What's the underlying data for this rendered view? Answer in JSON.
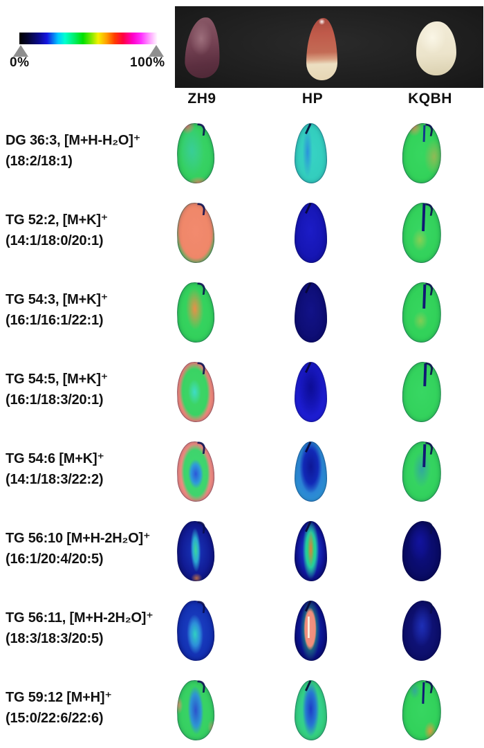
{
  "figure": {
    "colorbar": {
      "min_label": "0%",
      "max_label": "100%",
      "marker_color": "#8f8f8f",
      "gradient_css": "linear-gradient(to right, #000000 0%, #050530 6%, #0a0a8c 14%, #1515e0 20%, #00c8ff 28%, #00ffd0 33%, #00ee66 40%, #00e000 46%, #7fe800 52%, #f5f000 57%, #ffa000 63%, #ff3c00 69%, #ff0040 75%, #ff00c8 82%, #ff30ff 88%, #ff9cff 94%, #ffffff 100%)"
    },
    "photo_panel": {
      "background_css": "radial-gradient(ellipse at 50% 45%, #2a2a2a 0%, #1d1d1d 70%, #161616 100%)",
      "seeds": [
        {
          "variety": "ZH9",
          "appearance_css": "radial-gradient(ellipse 40% 35% at 45% 35%, #9d6f7c 0%, rgba(157,111,124,0) 80%), linear-gradient(170deg, #8a5a68 0%, #744253 45%, #5c2f40 75%, #4e2836 100%)"
        },
        {
          "variety": "HP",
          "appearance_css": "radial-gradient(ellipse 14% 7% at 50% 6%, rgba(255,255,255,0.95), rgba(255,255,255,0) 75%), linear-gradient(178deg, #a84a40 0%, #c05a4a 25%, #c36b55 55%, #d9a183 66%, #ecdfc2 74%, #e6d6b4 100%)"
        },
        {
          "variety": "KQBH",
          "appearance_css": "radial-gradient(ellipse 45% 40% at 40% 30%, #faf6e6 0%, rgba(250,246,230,0) 75%), linear-gradient(175deg, #f2ecd8 0%, #ece4cb 60%, #d9cfae 100%)"
        }
      ]
    },
    "columns": [
      "ZH9",
      "HP",
      "KQBH"
    ],
    "rows": [
      {
        "lipid": "DG 36:3, [M+H-H₂O]⁺",
        "chains": "(18:2/18:1)",
        "cells": [
          {
            "variety": "ZH9",
            "appearance_css": "radial-gradient(ellipse 30% 20% at 30% 4%, rgba(238,120,110,0.9), rgba(238,120,110,0) 70%), radial-gradient(ellipse 40% 14% at 55% 99%, rgba(242,140,95,0.85), rgba(242,140,95,0) 75%), radial-gradient(ellipse 35% 45% at 40% 45%, rgba(56,200,190,0.55), rgba(56,200,190,0) 95%), radial-gradient(ellipse at 50% 50%, #3bd46a 0%, #33cf5e 70%, #31c95b 100%)"
          },
          {
            "variety": "HP",
            "appearance_css": "linear-gradient(115deg, rgba(10,12,80,0.9) 0%, rgba(10,12,80,0) 13%), radial-gradient(ellipse 16% 45% at 40% 48%, rgba(35,105,235,0.6), rgba(35,105,235,0) 95%), radial-gradient(ellipse at 50% 50%, #37d3c4 0%, #33cdbd 65%, #2fc5b5 100%)"
          },
          {
            "variety": "KQBH",
            "appearance_css": "linear-gradient(#123a8c, #123a8c) 56% 4% / 6% 28% no-repeat, radial-gradient(ellipse 28% 22% at 28% 6%, rgba(236,150,92,0.85), rgba(236,150,92,0) 75%), radial-gradient(ellipse 30% 35% at 82% 55%, rgba(236,160,80,0.5), rgba(236,160,80,0) 85%), radial-gradient(ellipse at 50% 50%, #37d760 0%, #32d159 70%, #3dcf6d 100%)"
          }
        ]
      },
      {
        "lipid": "TG 52:2, [M+K]⁺",
        "chains": "(14:1/18:0/20:1)",
        "cells": [
          {
            "variety": "ZH9",
            "appearance_css": "radial-gradient(ellipse 62% 64% at 50% 47%, #f28a6e 0%, #ef8769 70%, rgba(240,134,105,0) 90%), radial-gradient(ellipse at 50% 50%, #52d46a 0%, #39cc5d 80%, #31c79a 100%)"
          },
          {
            "variety": "HP",
            "appearance_css": "radial-gradient(ellipse at 48% 46%, #1c1cc6 0%, #1616b4 55%, #101098 100%)"
          },
          {
            "variety": "KQBH",
            "appearance_css": "linear-gradient(#101874, #101874) 54% 3% / 7% 46% no-repeat, radial-gradient(ellipse 24% 22% at 46% 62%, rgba(215,200,70,0.5), rgba(215,200,70,0) 85%), radial-gradient(ellipse at 50% 50%, #39d764 0%, #31d059 70%, #39c9d2 98%)"
          }
        ]
      },
      {
        "lipid": "TG 54:3, [M+K]⁺",
        "chains": "(16:1/16:1/22:1)",
        "cells": [
          {
            "variety": "ZH9",
            "appearance_css": "radial-gradient(ellipse 26% 38% at 48% 44%, #e89048 0%, rgba(232,144,72,0) 92%), radial-gradient(ellipse at 50% 50%, #39d563 0%, #31cf5a 75%, #45c9de 98%)"
          },
          {
            "variety": "HP",
            "appearance_css": "radial-gradient(ellipse at 50% 47%, #121288 0%, #0e0e76 55%, #0a0a62 100%)"
          },
          {
            "variety": "KQBH",
            "appearance_css": "linear-gradient(#101874, #101874) 56% 5% / 7% 40% no-repeat, radial-gradient(ellipse 22% 18% at 48% 64%, rgba(220,195,75,0.45), rgba(220,195,75,0) 88%), radial-gradient(ellipse at 50% 50%, #37d65f 0%, #30d058 70%, #3ac8d3 98%)"
          }
        ]
      },
      {
        "lipid": "TG 54:5, [M+K]⁺",
        "chains": "(16:1/18:3/20:1)",
        "cells": [
          {
            "variety": "ZH9",
            "appearance_css": "radial-gradient(ellipse 20% 24% at 47% 50%, #3edcc6 0%, rgba(62,220,198,0) 88%), radial-gradient(ellipse 50% 58% at 48% 50%, #3ed667 0%, #3ad364 66%, rgba(58,211,100,0) 84%), radial-gradient(ellipse at 50% 50%, #f28a7c 0%, #f0897a 90%, #e4847e 100%)"
          },
          {
            "variety": "HP",
            "appearance_css": "radial-gradient(ellipse 46% 55% at 50% 42%, #0d0d96 0%, rgba(13,13,150,0) 92%), radial-gradient(ellipse at 50% 50%, #1818c8 0%, #1e1ed4 72%, #2222dc 100%)"
          },
          {
            "variety": "KQBH",
            "appearance_css": "linear-gradient(#101874, #101874) 57% 4% / 7% 38% no-repeat, radial-gradient(ellipse at 50% 50%, #38d763 0%, #32d15b 72%, #36cb72 100%)"
          }
        ]
      },
      {
        "lipid": "TG 54:6 [M+K]⁺",
        "chains": "(14:1/18:3/22:2)",
        "cells": [
          {
            "variety": "ZH9",
            "appearance_css": "radial-gradient(ellipse 25% 30% at 50% 54%, #2c58da 0%, #2f9ada 52%, rgba(47,154,218,0) 82%), radial-gradient(ellipse 46% 56% at 50% 52%, #3cd96f 0%, #3fd46d 68%, rgba(63,212,109,0) 86%), radial-gradient(ellipse at 50% 50%, #f28e85 0%, #f08a80 90%, #ea8b85 100%)"
          },
          {
            "variety": "HP",
            "appearance_css": "radial-gradient(ellipse 38% 48% at 50% 42%, #0d1796 0%, #1129b6 58%, rgba(17,41,182,0) 92%), radial-gradient(ellipse at 50% 50%, #2156cd 0%, #2f9ad8 75%, #3ac5e5 100%)"
          },
          {
            "variety": "KQBH",
            "appearance_css": "linear-gradient(#101874, #101874) 56% 7% / 7% 38% no-repeat, radial-gradient(ellipse 26% 34% at 50% 46%, rgba(42,122,212,0.5), rgba(42,122,212,0) 90%), radial-gradient(ellipse at 50% 50%, #39d766 0%, #31d05c 70%, #37cb8f 100%)"
          }
        ]
      },
      {
        "lipid": "TG 56:10 [M+H-2H₂O]⁺",
        "chains": "(16:1/20:4/20:5)",
        "cells": [
          {
            "variety": "ZH9",
            "appearance_css": "radial-gradient(ellipse 15% 40% at 50% 48%, #3ad89c 0%, #2ca9d0 50%, rgba(30,72,192,0) 92%), radial-gradient(ellipse 18% 10% at 50% 95%, rgba(230,132,62,0.8), rgba(230,132,62,0) 85%), radial-gradient(ellipse at 50% 50%, #1837be 0%, #111b94 55%, #0a0c5a 96%)"
          },
          {
            "variety": "HP",
            "appearance_css": "radial-gradient(ellipse 11% 34% at 50% 46%, #e07d43 0%, rgba(224,125,67,0) 92%), radial-gradient(ellipse 26% 50% at 50% 48%, #2fe159 0%, #24cc9e 58%, rgba(33,82,212,0) 98%), radial-gradient(ellipse at 50% 50%, #1c3dd5 18%, #0f1599 58%, #06063e 95%)"
          },
          {
            "variety": "KQBH",
            "appearance_css": "radial-gradient(ellipse 32% 35% at 44% 34%, #12139e 0%, rgba(18,19,158,0) 92%), radial-gradient(ellipse at 50% 50%, #0d0f84 0%, #090b64 60%, #050542 95%)"
          }
        ]
      },
      {
        "lipid": "TG 56:11, [M+H-2H₂O]⁺",
        "chains": "(18:3/18:3/20:5)",
        "cells": [
          {
            "variety": "ZH9",
            "appearance_css": "radial-gradient(ellipse 24% 36% at 48% 56%, #30d0c3 0%, #2d8fd9 52%, rgba(42,92,202,0) 92%), radial-gradient(ellipse at 50% 50%, #1d45c9 0%, #1331b2 60%, #0b1076 100%)"
          },
          {
            "variety": "HP",
            "appearance_css": "linear-gradient(rgba(250,245,230,0.95), rgba(250,245,230,0.95)) 43% 42% / 6% 36% no-repeat, radial-gradient(ellipse 22% 40% at 48% 47%, #f29181 0%, #f18d7b 72%, rgba(241,141,123,0) 90%), radial-gradient(ellipse 32% 54% at 48% 48%, #37e159 0%, rgba(55,225,89,0) 98%), radial-gradient(ellipse at 50% 50%, #1231c2 0%, #0b1188 60%, #060640 95%)"
          },
          {
            "variety": "KQBH",
            "appearance_css": "radial-gradient(ellipse 30% 38% at 50% 42%, #1e2fb6 0%, rgba(30,47,182,0) 90%), radial-gradient(ellipse at 50% 50%, #121686 0%, #0c0e68 65%, #080948 100%)"
          }
        ]
      },
      {
        "lipid": "TG 59:12 [M+H]⁺",
        "chains": "(15:0/22:6/22:6)",
        "cells": [
          {
            "variety": "ZH9",
            "appearance_css": "radial-gradient(ellipse 24% 46% at 50% 50%, #2b53cd 0%, #2e95d3 58%, rgba(46,149,211,0) 88%), radial-gradient(ellipse 16% 22% at 5% 40%, rgba(242,152,112,0.85), rgba(242,152,112,0) 70%), radial-gradient(ellipse 16% 18% at 92% 80%, rgba(242,152,112,0.6), rgba(242,152,112,0) 75%), radial-gradient(ellipse at 50% 50%, #3bd468 0%, #35cf60 78%, #a8dc96 100%)"
          },
          {
            "variety": "HP",
            "appearance_css": "radial-gradient(ellipse 28% 50% at 50% 48%, #1d3bc7 0%, #2677d1 55%, rgba(38,119,209,0) 92%), radial-gradient(ellipse at 50% 50%, #32cca6 0%, #34d085 55%, #37d466 100%)"
          },
          {
            "variety": "KQBH",
            "appearance_css": "linear-gradient(#101874, #101874) 53% 5% / 6% 36% no-repeat, radial-gradient(ellipse 20% 20% at 74% 84%, rgba(236,152,62,0.9), rgba(236,152,62,0) 80%), radial-gradient(ellipse 16% 16% at 30% 18%, rgba(52,122,222,0.45), rgba(52,122,222,0) 85%), radial-gradient(ellipse at 50% 50%, #37d661 0%, #30d059 75%, #35cd70 100%)"
          }
        ]
      }
    ]
  }
}
